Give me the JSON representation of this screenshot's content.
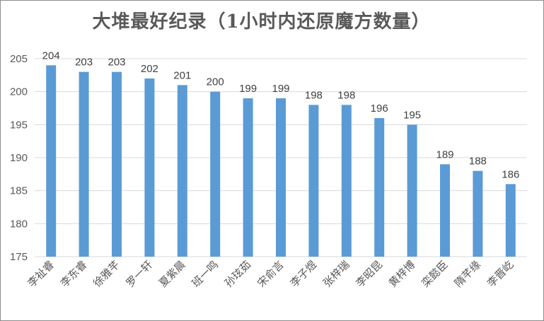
{
  "chart_data": {
    "type": "bar",
    "title": "大堆最好纪录（1小时内还原魔方数量）",
    "categories": [
      "李祉睿",
      "李东睿",
      "徐雅芊",
      "罗一轩",
      "夏紫晨",
      "班一鸣",
      "孙玹茹",
      "宋俞言",
      "李子煜",
      "张梓瑞",
      "李昭昆",
      "黄梓博",
      "栾懿臣",
      "隋芊缘",
      "李晋屹"
    ],
    "values": [
      204,
      203,
      203,
      202,
      201,
      200,
      199,
      199,
      198,
      198,
      196,
      195,
      189,
      188,
      186
    ],
    "ylim": [
      175,
      205
    ],
    "yticks": [
      175,
      180,
      185,
      190,
      195,
      200,
      205
    ],
    "grid": true,
    "bar_color": "#5B9BD5",
    "xlabel": "",
    "ylabel": ""
  }
}
